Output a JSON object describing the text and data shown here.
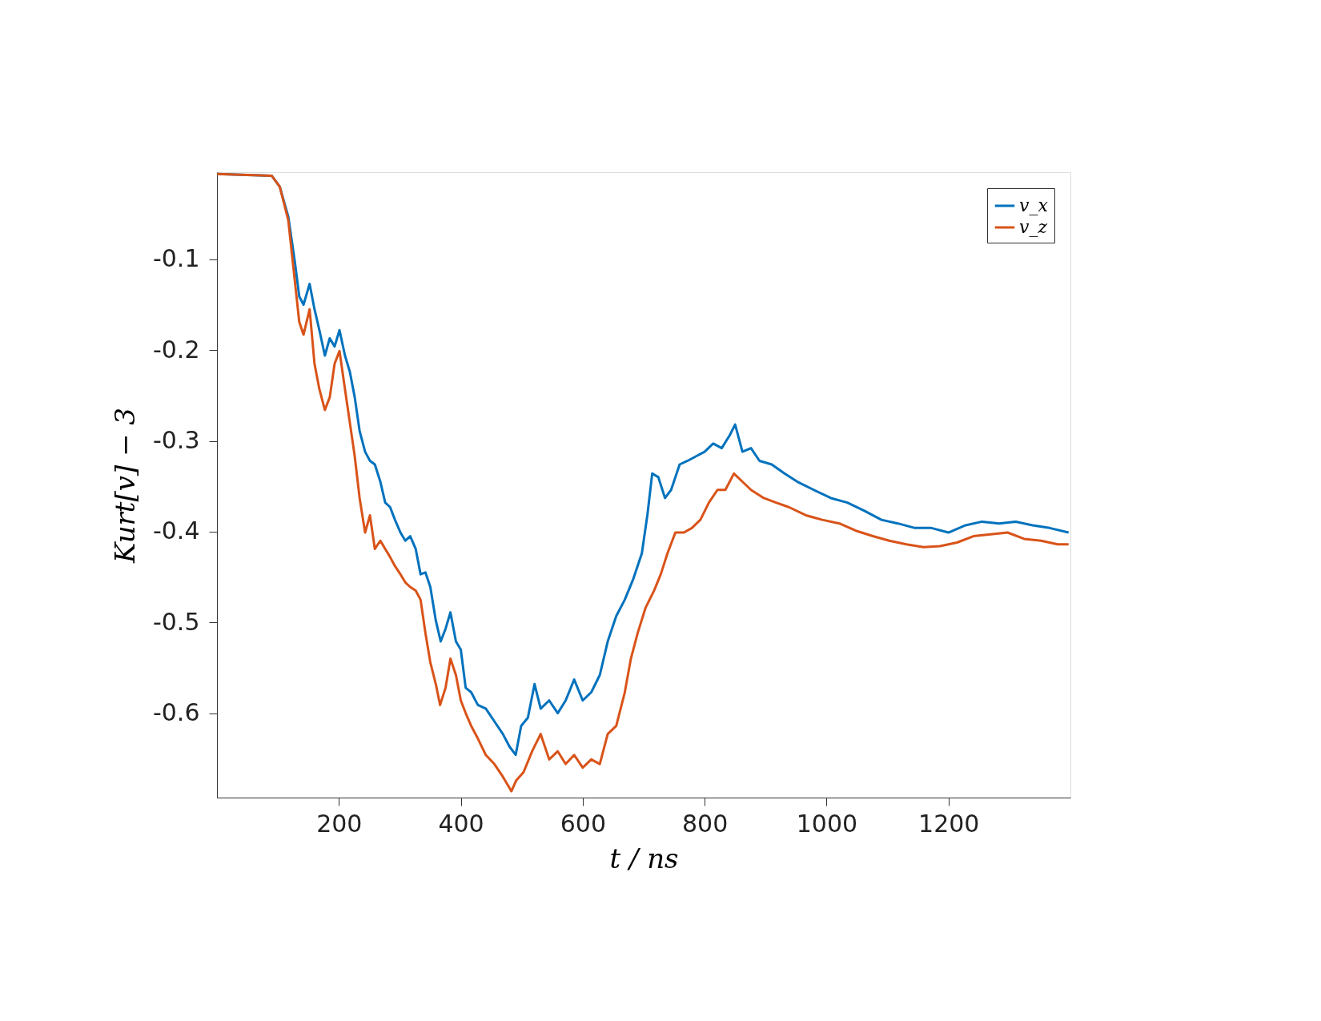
{
  "chart_data": {
    "type": "line",
    "xlabel": "t / ns",
    "ylabel": "Kurt[v] − 3",
    "xlim": [
      0,
      1400
    ],
    "xticks": [
      200,
      400,
      600,
      800,
      1000,
      1200
    ],
    "ylim": [
      -0.693,
      -0.004
    ],
    "yticks": [
      -0.6,
      -0.5,
      -0.4,
      -0.3,
      -0.2,
      -0.1
    ],
    "grid": false,
    "legend": "top right",
    "marker": "none",
    "line_style": "solid",
    "series": [
      {
        "name": "v_x",
        "color": "#0072bd",
        "x": [
          0,
          90,
          103,
          117,
          128,
          135,
          142,
          152,
          160,
          168,
          177,
          185,
          193,
          201,
          210,
          218,
          226,
          234,
          243,
          251,
          259,
          268,
          276,
          284,
          292,
          301,
          309,
          317,
          326,
          334,
          342,
          350,
          359,
          367,
          375,
          383,
          392,
          400,
          408,
          417,
          428,
          441,
          455,
          469,
          480,
          490,
          499,
          510,
          521,
          531,
          545,
          559,
          572,
          586,
          600,
          614,
          628,
          641,
          655,
          669,
          683,
          697,
          706,
          714,
          724,
          735,
          745,
          759,
          772,
          786,
          800,
          814,
          828,
          841,
          850,
          862,
          876,
          890,
          910,
          931,
          952,
          979,
          1007,
          1034,
          1062,
          1090,
          1117,
          1145,
          1172,
          1200,
          1228,
          1255,
          1283,
          1310,
          1338,
          1366,
          1397
        ],
        "values": [
          -0.006,
          -0.008,
          -0.02,
          -0.053,
          -0.104,
          -0.141,
          -0.15,
          -0.127,
          -0.155,
          -0.178,
          -0.206,
          -0.187,
          -0.196,
          -0.178,
          -0.206,
          -0.224,
          -0.252,
          -0.289,
          -0.312,
          -0.322,
          -0.326,
          -0.345,
          -0.368,
          -0.373,
          -0.387,
          -0.401,
          -0.41,
          -0.405,
          -0.419,
          -0.447,
          -0.445,
          -0.461,
          -0.498,
          -0.521,
          -0.507,
          -0.489,
          -0.521,
          -0.53,
          -0.572,
          -0.577,
          -0.591,
          -0.595,
          -0.609,
          -0.623,
          -0.637,
          -0.646,
          -0.614,
          -0.605,
          -0.568,
          -0.595,
          -0.586,
          -0.6,
          -0.586,
          -0.563,
          -0.586,
          -0.577,
          -0.558,
          -0.521,
          -0.493,
          -0.475,
          -0.452,
          -0.424,
          -0.382,
          -0.336,
          -0.34,
          -0.363,
          -0.354,
          -0.326,
          -0.322,
          -0.317,
          -0.312,
          -0.303,
          -0.308,
          -0.294,
          -0.282,
          -0.312,
          -0.308,
          -0.322,
          -0.326,
          -0.336,
          -0.345,
          -0.354,
          -0.363,
          -0.368,
          -0.377,
          -0.387,
          -0.391,
          -0.396,
          -0.396,
          -0.401,
          -0.393,
          -0.389,
          -0.391,
          -0.389,
          -0.393,
          -0.396,
          -0.401
        ]
      },
      {
        "name": "v_z",
        "color": "#d95319",
        "x": [
          0,
          90,
          103,
          117,
          126,
          135,
          142,
          152,
          160,
          168,
          177,
          185,
          193,
          201,
          210,
          218,
          226,
          234,
          243,
          251,
          259,
          268,
          276,
          284,
          292,
          301,
          309,
          317,
          326,
          334,
          342,
          350,
          359,
          366,
          375,
          383,
          392,
          400,
          408,
          417,
          428,
          441,
          455,
          469,
          483,
          491,
          503,
          517,
          531,
          545,
          559,
          572,
          586,
          600,
          614,
          628,
          641,
          655,
          669,
          679,
          690,
          703,
          717,
          728,
          739,
          752,
          766,
          779,
          793,
          807,
          821,
          834,
          848,
          862,
          876,
          897,
          917,
          938,
          966,
          993,
          1021,
          1048,
          1076,
          1103,
          1131,
          1159,
          1186,
          1214,
          1241,
          1269,
          1297,
          1324,
          1352,
          1379,
          1397
        ],
        "values": [
          -0.006,
          -0.008,
          -0.02,
          -0.057,
          -0.113,
          -0.169,
          -0.183,
          -0.155,
          -0.215,
          -0.243,
          -0.266,
          -0.252,
          -0.215,
          -0.201,
          -0.243,
          -0.28,
          -0.317,
          -0.363,
          -0.401,
          -0.382,
          -0.419,
          -0.41,
          -0.419,
          -0.428,
          -0.438,
          -0.447,
          -0.456,
          -0.461,
          -0.465,
          -0.475,
          -0.512,
          -0.544,
          -0.568,
          -0.591,
          -0.572,
          -0.54,
          -0.558,
          -0.586,
          -0.6,
          -0.614,
          -0.628,
          -0.646,
          -0.656,
          -0.67,
          -0.686,
          -0.674,
          -0.665,
          -0.642,
          -0.623,
          -0.651,
          -0.642,
          -0.656,
          -0.646,
          -0.66,
          -0.651,
          -0.656,
          -0.623,
          -0.614,
          -0.577,
          -0.54,
          -0.512,
          -0.484,
          -0.465,
          -0.447,
          -0.424,
          -0.401,
          -0.401,
          -0.396,
          -0.387,
          -0.368,
          -0.354,
          -0.354,
          -0.336,
          -0.345,
          -0.354,
          -0.363,
          -0.368,
          -0.373,
          -0.382,
          -0.387,
          -0.391,
          -0.399,
          -0.405,
          -0.41,
          -0.414,
          -0.417,
          -0.416,
          -0.412,
          -0.405,
          -0.403,
          -0.401,
          -0.408,
          -0.41,
          -0.414,
          -0.414
        ]
      }
    ]
  }
}
